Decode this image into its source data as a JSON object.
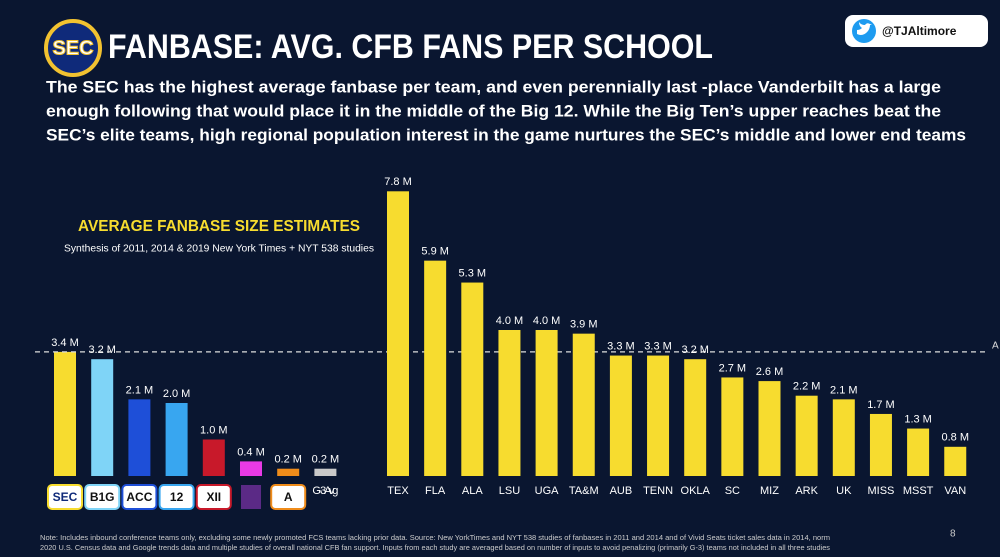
{
  "header": {
    "logo": "SEC",
    "title": "FANBASE:  AVG. CFB FANS PER SCHOOL",
    "handle": "@TJAltimore",
    "body": [
      "The SEC has the highest average fanbase per team, and even perennially last -place Vanderbilt has a large",
      "enough following that would place it in the middle of the Big 12.  While the Big Ten’s upper reaches beat the",
      "SEC’s elite teams, high regional population interest in the game nurtures the SEC’s middle and lower end teams"
    ]
  },
  "chart_data": [
    {
      "type": "bar",
      "title": "AVERAGE FANBASE SIZE ESTIMATES",
      "subtitle": "Synthesis of 2011, 2014 & 2019 New York Times + NYT 538 studies",
      "categories": [
        "SEC",
        "B1G",
        "ACC",
        "12",
        "XII",
        null,
        "A",
        "G-3 Avg"
      ],
      "values": [
        3.4,
        3.2,
        2.1,
        2.0,
        1.0,
        0.4,
        0.2,
        0.2
      ],
      "value_labels": [
        "3.4 M",
        "3.2 M",
        "2.1 M",
        "2.0 M",
        "1.0 M",
        "0.4 M",
        "0.2 M",
        "0.2 M"
      ],
      "colors": [
        "#f7dc2f",
        "#7fd4f7",
        "#1e4fd8",
        "#38a6f0",
        "#c8192a",
        "#e83ae6",
        "#f08c1a",
        "#c9c9c9"
      ]
    },
    {
      "type": "bar",
      "categories": [
        "TEX",
        "FLA",
        "ALA",
        "LSU",
        "UGA",
        "TA&M",
        "AUB",
        "TENN",
        "OKLA",
        "SC",
        "MIZ",
        "ARK",
        "UK",
        "MISS",
        "MSST",
        "VAN"
      ],
      "values": [
        7.8,
        5.9,
        5.3,
        4.0,
        4.0,
        3.9,
        3.3,
        3.3,
        3.2,
        2.7,
        2.6,
        2.2,
        2.1,
        1.7,
        1.3,
        0.8
      ],
      "value_labels": [
        "7.8 M",
        "5.9 M",
        "5.3 M",
        "4.0 M",
        "4.0 M",
        "3.9 M",
        "3.3 M",
        "3.3 M",
        "3.2 M",
        "2.7 M",
        "2.6 M",
        "2.2 M",
        "2.1 M",
        "1.7 M",
        "1.3 M",
        "0.8 M"
      ],
      "color": "#f7dc2f",
      "reference_line": {
        "value": 3.4,
        "label": "A"
      }
    }
  ],
  "footer": {
    "note": [
      "Note: Includes inbound conference teams only, excluding some newly promoted FCS teams lacking prior data.  Source: New YorkTimes and NYT 538 studies of fanbases in 2011 and 2014 and of Vivid Seats ticket sales data in 2014, norm",
      "2020 U.S. Census data and Google trends data and multiple studies of overall national CFB fan support.  Inputs from each study are averaged based on number of inputs to avoid penalizing (primarily G-3) teams not included in all three studies"
    ],
    "page": "8"
  }
}
